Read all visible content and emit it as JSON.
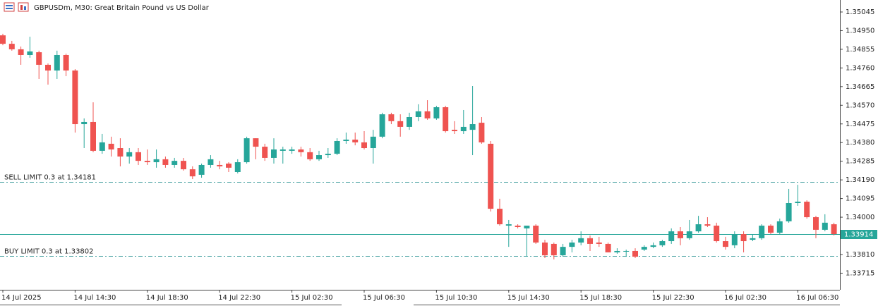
{
  "chart_data": {
    "type": "candlestick",
    "title": "GBPUSDm, M30:  Great Britain Pound vs US Dollar",
    "up_color": "#26a69a",
    "down_color": "#ef5350",
    "categories": [
      "14 Jul 2025",
      null,
      null,
      null,
      null,
      null,
      null,
      null,
      "14 Jul 14:30",
      null,
      null,
      null,
      null,
      null,
      null,
      null,
      "14 Jul 18:30",
      null,
      null,
      null,
      null,
      null,
      null,
      null,
      "14 Jul 22:30",
      null,
      null,
      null,
      null,
      null,
      null,
      null,
      "15 Jul 02:30",
      null,
      null,
      null,
      null,
      null,
      null,
      null,
      "15 Jul 06:30",
      null,
      null,
      null,
      null,
      null,
      null,
      null,
      "15 Jul 10:30",
      null,
      null,
      null,
      null,
      null,
      null,
      null,
      "15 Jul 14:30",
      null,
      null,
      null,
      null,
      null,
      null,
      null,
      "15 Jul 18:30",
      null,
      null,
      null,
      null,
      null,
      null,
      null,
      "15 Jul 22:30",
      null,
      null,
      null,
      null,
      null,
      null,
      null,
      "16 Jul 02:30",
      null,
      null,
      null,
      null,
      null,
      null,
      null,
      "16 Jul 06:30",
      null,
      null,
      null,
      null
    ],
    "open": [
      1.34926,
      1.34883,
      1.34855,
      1.34826,
      1.3484,
      1.34776,
      1.34747,
      1.34826,
      1.34747,
      1.34474,
      1.34485,
      1.34338,
      1.34374,
      1.34352,
      1.34309,
      1.34331,
      1.34287,
      1.3428,
      1.34295,
      1.34266,
      1.34287,
      1.34244,
      1.34216,
      1.34266,
      1.34266,
      1.34273,
      1.3423,
      1.3428,
      1.34402,
      1.34359,
      1.34302,
      1.34338,
      1.34338,
      1.34345,
      1.34331,
      1.34295,
      1.34316,
      1.34323,
      1.34388,
      1.34395,
      1.34381,
      1.34352,
      1.3441,
      1.34524,
      1.34489,
      1.3446,
      1.3451,
      1.34539,
      1.34503,
      1.3456,
      1.34445,
      1.34438,
      1.34445,
      1.34481,
      1.34374,
      1.34043,
      1.33957,
      1.33957,
      1.33943,
      1.33957,
      1.33871,
      1.33864,
      1.33806,
      1.33849,
      1.33871,
      1.33893,
      1.33871,
      1.33864,
      1.33821,
      1.33828,
      1.33828,
      1.33835,
      1.33849,
      1.33857,
      1.33878,
      1.33928,
      1.33893,
      1.33928,
      1.33964,
      1.33957,
      1.33878,
      1.33857,
      1.33914,
      1.33885,
      1.33893,
      1.33957,
      1.33921,
      1.33979,
      1.34072,
      1.34079,
      1.34,
      1.33936,
      1.33964
    ],
    "high": [
      1.34934,
      1.34898,
      1.34869,
      1.34919,
      1.34848,
      1.34783,
      1.34848,
      1.34833,
      1.34754,
      1.34503,
      1.34585,
      1.34424,
      1.3441,
      1.34402,
      1.34352,
      1.34352,
      1.34345,
      1.34345,
      1.34309,
      1.34302,
      1.34302,
      1.34259,
      1.34273,
      1.34316,
      1.34287,
      1.3428,
      1.34295,
      1.3441,
      1.34402,
      1.34374,
      1.34402,
      1.34359,
      1.34359,
      1.34359,
      1.34352,
      1.34338,
      1.34352,
      1.34402,
      1.34431,
      1.34431,
      1.34438,
      1.34445,
      1.34532,
      1.34532,
      1.34524,
      1.34532,
      1.34575,
      1.34596,
      1.34567,
      1.34567,
      1.34489,
      1.34546,
      1.34668,
      1.3451,
      1.34388,
      1.34094,
      1.33986,
      1.33964,
      1.33957,
      1.33964,
      1.33885,
      1.33871,
      1.33864,
      1.33885,
      1.33928,
      1.33907,
      1.339,
      1.33871,
      1.33842,
      1.33835,
      1.33842,
      1.33857,
      1.33871,
      1.33885,
      1.33943,
      1.3395,
      1.33986,
      1.34007,
      1.34,
      1.33972,
      1.339,
      1.33928,
      1.33928,
      1.33914,
      1.33964,
      1.33964,
      1.33993,
      1.34144,
      1.34165,
      1.34086,
      1.34007,
      1.34015,
      1.33972
    ],
    "low": [
      1.34876,
      1.34848,
      1.34776,
      1.34812,
      1.34704,
      1.34675,
      1.34704,
      1.34718,
      1.34431,
      1.34352,
      1.34331,
      1.34323,
      1.34309,
      1.34259,
      1.34273,
      1.34266,
      1.34266,
      1.34252,
      1.34252,
      1.34252,
      1.34237,
      1.34194,
      1.34201,
      1.34252,
      1.34244,
      1.3423,
      1.34223,
      1.34273,
      1.34295,
      1.34287,
      1.34273,
      1.34273,
      1.34323,
      1.34309,
      1.34287,
      1.34287,
      1.34302,
      1.34316,
      1.34374,
      1.34366,
      1.34345,
      1.34273,
      1.34402,
      1.34474,
      1.3441,
      1.34445,
      1.34489,
      1.34496,
      1.34496,
      1.34431,
      1.34424,
      1.34424,
      1.34316,
      1.34374,
      1.34029,
      1.33957,
      1.33849,
      1.33943,
      1.33799,
      1.33864,
      1.33792,
      1.33785,
      1.33799,
      1.33821,
      1.33857,
      1.33828,
      1.33849,
      1.33821,
      1.33814,
      1.33799,
      1.33792,
      1.33828,
      1.33842,
      1.33849,
      1.33864,
      1.33857,
      1.33885,
      1.33921,
      1.3395,
      1.33871,
      1.33835,
      1.33842,
      1.33821,
      1.33878,
      1.33885,
      1.33914,
      1.33914,
      1.33972,
      1.34058,
      1.33993,
      1.33893,
      1.33928,
      1.33907
    ],
    "close": [
      1.34883,
      1.34855,
      1.34826,
      1.34844,
      1.34776,
      1.34747,
      1.34826,
      1.34747,
      1.34474,
      1.34485,
      1.34338,
      1.34381,
      1.34345,
      1.34309,
      1.34331,
      1.34287,
      1.3428,
      1.34295,
      1.34266,
      1.34287,
      1.34244,
      1.34208,
      1.34266,
      1.34295,
      1.34259,
      1.34252,
      1.3428,
      1.34402,
      1.34359,
      1.34302,
      1.34345,
      1.34345,
      1.34345,
      1.34331,
      1.34295,
      1.34316,
      1.34323,
      1.34388,
      1.34395,
      1.34381,
      1.34352,
      1.3441,
      1.34524,
      1.34489,
      1.3446,
      1.3451,
      1.34539,
      1.34503,
      1.3456,
      1.34438,
      1.34438,
      1.3446,
      1.34474,
      1.34381,
      1.34043,
      1.33964,
      1.33964,
      1.3395,
      1.33957,
      1.33871,
      1.33806,
      1.33806,
      1.33849,
      1.33871,
      1.33893,
      1.33864,
      1.33864,
      1.33821,
      1.33828,
      1.33828,
      1.33799,
      1.33849,
      1.33857,
      1.33878,
      1.33928,
      1.33893,
      1.33928,
      1.33964,
      1.33957,
      1.33878,
      1.33849,
      1.33914,
      1.33878,
      1.33893,
      1.33957,
      1.33921,
      1.33979,
      1.34072,
      1.34079,
      1.34,
      1.33936,
      1.33972,
      1.33914
    ],
    "ylim": [
      1.33634,
      1.35106
    ],
    "yticks": [
      {
        "value": 1.35045,
        "label": "1.35045"
      },
      {
        "value": 1.3495,
        "label": "1.34950"
      },
      {
        "value": 1.34855,
        "label": "1.34855"
      },
      {
        "value": 1.3476,
        "label": "1.34760"
      },
      {
        "value": 1.34665,
        "label": "1.34665"
      },
      {
        "value": 1.3457,
        "label": "1.34570"
      },
      {
        "value": 1.34475,
        "label": "1.34475"
      },
      {
        "value": 1.3438,
        "label": "1.34380"
      },
      {
        "value": 1.34285,
        "label": "1.34285"
      },
      {
        "value": 1.3419,
        "label": "1.34190"
      },
      {
        "value": 1.34095,
        "label": "1.34095"
      },
      {
        "value": 1.34,
        "label": "1.34000"
      },
      {
        "value": 1.3381,
        "label": "1.33810"
      },
      {
        "value": 1.33715,
        "label": "1.33715"
      }
    ],
    "last_price": {
      "value": 1.33914,
      "label": "1.33914"
    },
    "orders": [
      {
        "label": "SELL LIMIT 0.3 at 1.34181",
        "price": 1.34181
      },
      {
        "label": "BUY LIMIT 0.3 at 1.33802",
        "price": 1.33802
      }
    ]
  }
}
